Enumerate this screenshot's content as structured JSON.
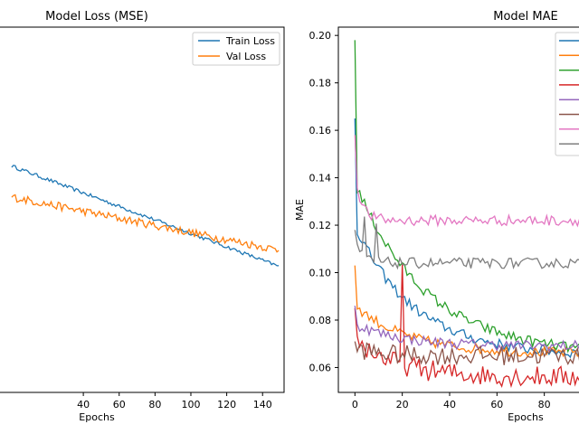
{
  "chart_data": [
    {
      "type": "line",
      "title": "Model Loss (MSE)",
      "xlabel": "Epochs",
      "ylabel": "",
      "xlim": [
        -7,
        152
      ],
      "ylim": [
        0,
        1
      ],
      "x_ticks": [
        40,
        60,
        80,
        100,
        120,
        140
      ],
      "legend": "upper right",
      "series": [
        {
          "name": "Train Loss",
          "color": "#1f77b4",
          "start": 0.62,
          "end": 0.345
        },
        {
          "name": "Val Loss",
          "color": "#ff7f0e",
          "start": 0.535,
          "end": 0.39
        }
      ]
    },
    {
      "type": "line",
      "title": "Model MAE",
      "xlabel": "Epochs",
      "ylabel": "MAE",
      "xlim": [
        -7,
        100
      ],
      "ylim": [
        0.0495,
        0.2035
      ],
      "x_ticks": [
        0,
        20,
        40,
        60,
        80
      ],
      "x_tick_labels": [
        "0",
        "20",
        "40",
        "60",
        "80"
      ],
      "y_ticks": [
        0.06,
        0.08,
        0.1,
        0.12,
        0.14,
        0.16,
        0.18,
        0.2
      ],
      "y_tick_labels": [
        "0.06",
        "0.08",
        "0.10",
        "0.12",
        "0.14",
        "0.16",
        "0.18",
        "0.20"
      ],
      "legend": "upper right",
      "series": [
        {
          "color": "#1f77b4",
          "spike": 0.165,
          "plateau": 0.065,
          "decay": 25
        },
        {
          "color": "#ff7f0e",
          "spike": 0.103,
          "plateau": 0.066,
          "decay": 22
        },
        {
          "color": "#2ca02c",
          "spike": 0.198,
          "plateau": 0.065,
          "decay": 30
        },
        {
          "color": "#d62728",
          "spike": 0.085,
          "plateau": 0.056,
          "decay": 18
        },
        {
          "color": "#9467bd",
          "spike": 0.086,
          "plateau": 0.069,
          "decay": 20
        },
        {
          "color": "#8c564b",
          "spike": 0.071,
          "plateau": 0.065,
          "decay": 10
        },
        {
          "color": "#e377c2",
          "spike": 0.158,
          "plateau": 0.122,
          "decay": 3
        },
        {
          "color": "#7f7f7f",
          "spike": 0.118,
          "plateau": 0.104,
          "decay": 4
        }
      ]
    }
  ]
}
